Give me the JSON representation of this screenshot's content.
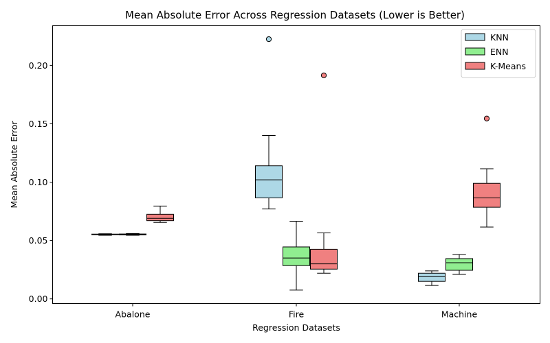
{
  "chart_data": {
    "type": "boxplot",
    "title": "Mean Absolute Error Across Regression Datasets (Lower is Better)",
    "xlabel": "Regression Datasets",
    "ylabel": "Mean Absolute Error",
    "categories": [
      "Abalone",
      "Fire",
      "Machine"
    ],
    "ylim": [
      -0.004,
      0.234
    ],
    "yticks": [
      0.0,
      0.05,
      0.1,
      0.15,
      0.2
    ],
    "ytick_labels": [
      "0.00",
      "0.05",
      "0.10",
      "0.15",
      "0.20"
    ],
    "grid": false,
    "legend_position": "top-right",
    "series": [
      {
        "name": "KNN",
        "color": "#add8e6",
        "boxes": [
          {
            "whislo": 0.0545,
            "q1": 0.055,
            "med": 0.0552,
            "q3": 0.0555,
            "whishi": 0.0558,
            "fliers": []
          },
          {
            "whislo": 0.077,
            "q1": 0.0865,
            "med": 0.102,
            "q3": 0.114,
            "whishi": 0.14,
            "fliers": [
              0.2225
            ]
          },
          {
            "whislo": 0.0115,
            "q1": 0.015,
            "med": 0.019,
            "q3": 0.022,
            "whishi": 0.024,
            "fliers": []
          }
        ]
      },
      {
        "name": "ENN",
        "color": "#90ee90",
        "boxes": [
          {
            "whislo": 0.0545,
            "q1": 0.0548,
            "med": 0.0551,
            "q3": 0.0556,
            "whishi": 0.056,
            "fliers": []
          },
          {
            "whislo": 0.0075,
            "q1": 0.0285,
            "med": 0.035,
            "q3": 0.0445,
            "whishi": 0.0665,
            "fliers": []
          },
          {
            "whislo": 0.021,
            "q1": 0.0245,
            "med": 0.031,
            "q3": 0.0345,
            "whishi": 0.038,
            "fliers": []
          }
        ]
      },
      {
        "name": "K-Means",
        "color": "#f08080",
        "boxes": [
          {
            "whislo": 0.0655,
            "q1": 0.067,
            "med": 0.069,
            "q3": 0.0725,
            "whishi": 0.0795,
            "fliers": []
          },
          {
            "whislo": 0.022,
            "q1": 0.0255,
            "med": 0.03,
            "q3": 0.0425,
            "whishi": 0.0565,
            "fliers": [
              0.1915
            ]
          },
          {
            "whislo": 0.0615,
            "q1": 0.0785,
            "med": 0.0865,
            "q3": 0.099,
            "whishi": 0.1115,
            "fliers": [
              0.1545
            ]
          }
        ]
      }
    ]
  }
}
